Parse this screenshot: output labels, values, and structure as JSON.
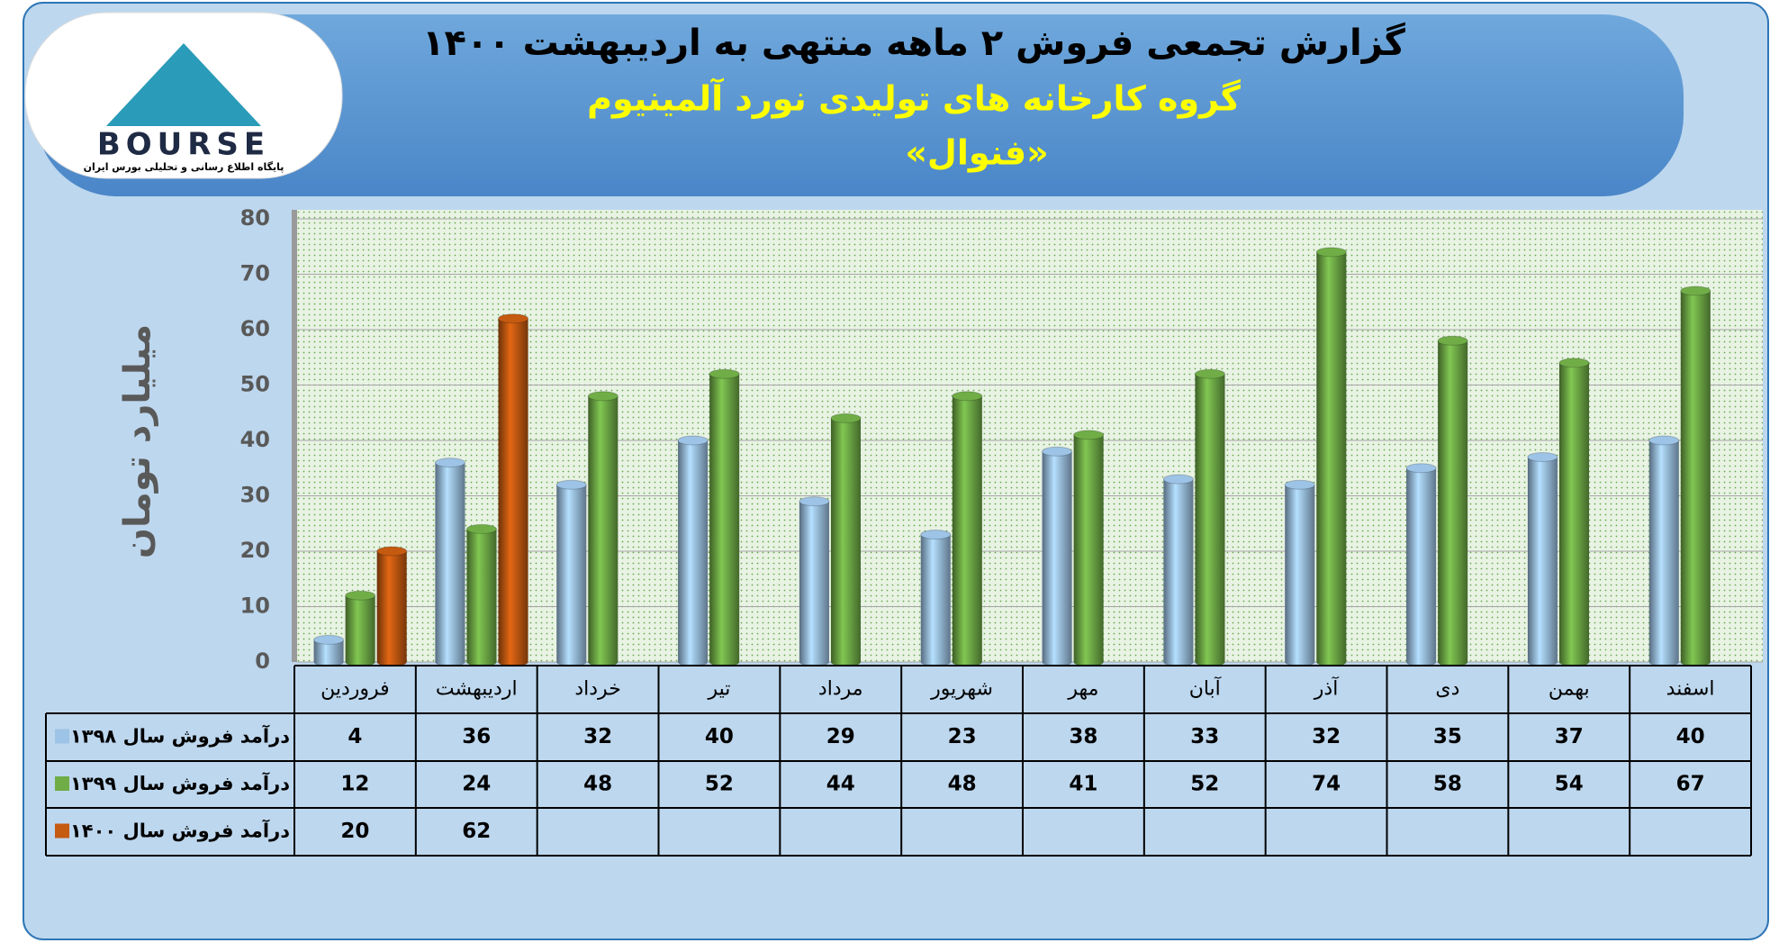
{
  "logo": {
    "name": "BOURSE",
    "tagline": "پایگاه اطلاع رسانی و تحلیلی بورس ایران"
  },
  "chart_data": {
    "type": "bar",
    "title": "گزارش تجمعی فروش ۲ ماهه منتهی به اردیبهشت ۱۴۰۰",
    "subtitle": "گروه کارخانه های تولیدی نورد آلمینیوم",
    "company": "«فنوال»",
    "y_label": "میلیارد تومان",
    "categories": [
      "فروردین",
      "اردیبهشت",
      "خرداد",
      "تیر",
      "مرداد",
      "شهریور",
      "مهر",
      "آبان",
      "آذر",
      "دی",
      "بهمن",
      "اسفند"
    ],
    "series": [
      {
        "name": "درآمد فروش سال ۱۳۹۸",
        "color": "#9dc3e6",
        "values": [
          4,
          36,
          32,
          40,
          29,
          23,
          38,
          33,
          32,
          35,
          37,
          40
        ]
      },
      {
        "name": "درآمد فروش سال ۱۳۹۹",
        "color": "#70ad47",
        "values": [
          12,
          24,
          48,
          52,
          44,
          48,
          41,
          52,
          74,
          58,
          54,
          67
        ]
      },
      {
        "name": "درآمد فروش سال ۱۴۰۰",
        "color": "#c55a11",
        "values": [
          20,
          62,
          null,
          null,
          null,
          null,
          null,
          null,
          null,
          null,
          null,
          null
        ]
      }
    ],
    "ylim": [
      0,
      80
    ],
    "yticks": [
      0,
      10,
      20,
      30,
      40,
      50,
      60,
      70,
      80
    ],
    "grid": true
  }
}
